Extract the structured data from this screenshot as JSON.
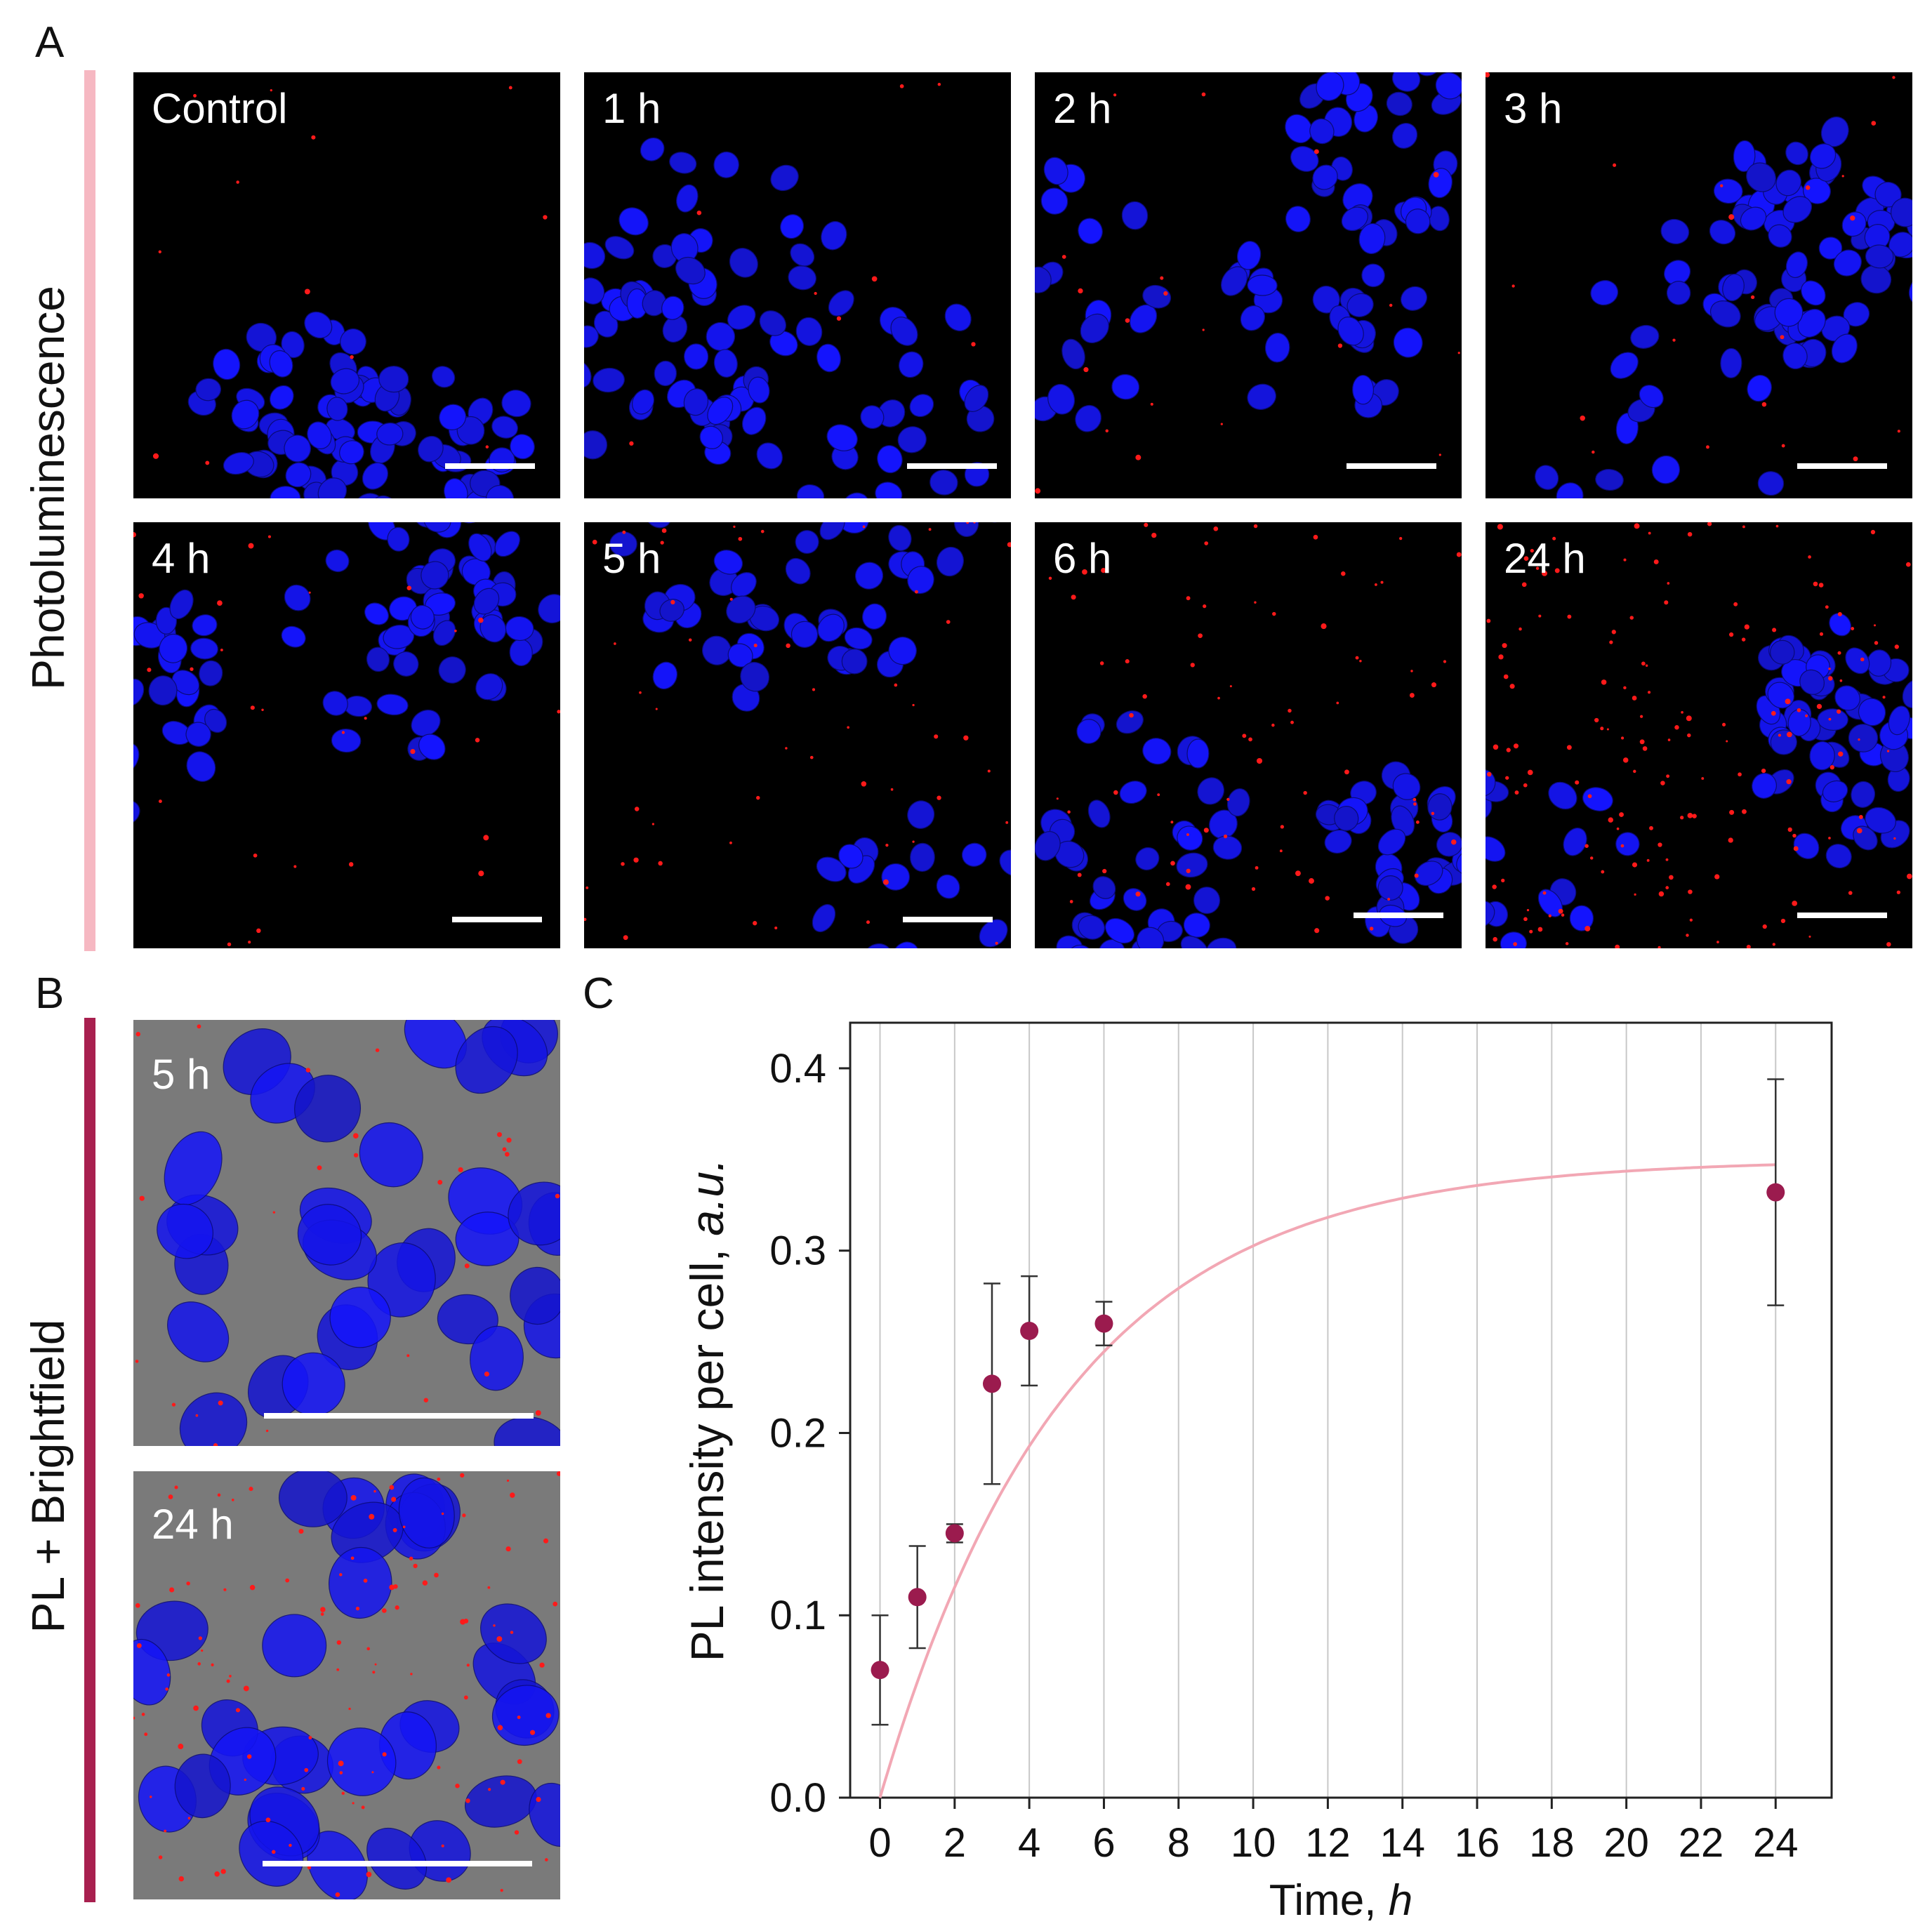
{
  "figure": {
    "panel_labels": {
      "a": "A",
      "b": "B",
      "c": "C"
    },
    "row_labels": {
      "photoluminescence": "Photoluminescence",
      "pl_brightfield": "PL + Brightfield"
    },
    "panel_a": {
      "images": [
        {
          "label": "Control",
          "red_level": 0.05
        },
        {
          "label": "1 h",
          "red_level": 0.03
        },
        {
          "label": "2 h",
          "red_level": 0.1
        },
        {
          "label": "3 h",
          "red_level": 0.1
        },
        {
          "label": "4 h",
          "red_level": 0.15
        },
        {
          "label": "5 h",
          "red_level": 0.3
        },
        {
          "label": "6 h",
          "red_level": 0.45
        },
        {
          "label": "24 h",
          "red_level": 1.0
        }
      ]
    },
    "panel_b": {
      "images": [
        {
          "label": "5 h",
          "red_level": 0.15
        },
        {
          "label": "24 h",
          "red_level": 0.7
        }
      ]
    },
    "colors": {
      "nucleus": "#1a1aee",
      "particle": "#ff1a1a",
      "pl_bar": "#f6b8c2",
      "bf_bar": "#a8204f",
      "marker": "#9b1b4e",
      "fit": "#f2a7b4"
    }
  },
  "chart_data": {
    "type": "scatter",
    "title": "",
    "xlabel": "Time, ",
    "xlabel_italic": "h",
    "ylabel": "PL intensity per cell, ",
    "ylabel_italic": "a.u.",
    "xlim": [
      -0.8,
      25.5
    ],
    "ylim": [
      0.0,
      0.425
    ],
    "xticks": [
      0,
      2,
      4,
      6,
      8,
      10,
      12,
      14,
      16,
      18,
      20,
      22,
      24
    ],
    "yticks": [
      0.0,
      0.1,
      0.2,
      0.3,
      0.4
    ],
    "ytick_labels": [
      "0.0",
      "0.1",
      "0.2",
      "0.3",
      "0.4"
    ],
    "grid": "vertical",
    "series": [
      {
        "name": "PL intensity",
        "x": [
          0,
          1,
          2,
          3,
          4,
          6,
          24
        ],
        "y": [
          0.07,
          0.11,
          0.145,
          0.227,
          0.256,
          0.26,
          0.332
        ],
        "err": [
          0.03,
          0.028,
          0.005,
          0.055,
          0.03,
          0.012,
          0.062
        ]
      }
    ],
    "fit": {
      "name": "fit",
      "amplitude": 0.35,
      "tau": 5.0
    }
  }
}
